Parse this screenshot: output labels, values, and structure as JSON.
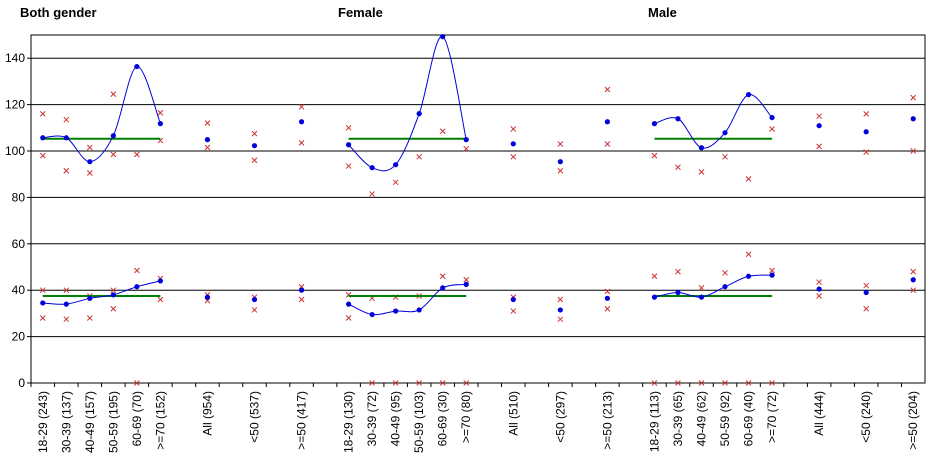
{
  "chart_data": {
    "type": "line",
    "panel_titles": [
      "Both gender",
      "Female",
      "Male"
    ],
    "categories": [
      "18-29 (243)",
      "30-39 (137)",
      "40-49 (157)",
      "50-59 (195)",
      "60-69 (70)",
      ">=70 (152)",
      null,
      "All (954)",
      null,
      "<50 (537)",
      null,
      ">=50 (417)",
      null,
      "18-29 (130)",
      "30-39 (72)",
      "40-49 (95)",
      "50-59 (103)",
      "60-69 (30)",
      ">=70 (80)",
      null,
      "All (510)",
      null,
      "<50 (297)",
      null,
      ">=50 (213)",
      null,
      "18-29 (113)",
      "30-39 (65)",
      "40-49 (62)",
      "50-59 (92)",
      "60-69 (40)",
      ">=70 (72)",
      null,
      "All (444)",
      null,
      "<50 (240)",
      null,
      ">=50 (204)"
    ],
    "ylim": [
      0,
      150
    ],
    "yticks": [
      0,
      20,
      40,
      60,
      80,
      100,
      120,
      140
    ],
    "grid": true,
    "series": [
      {
        "color": "#cc3333",
        "marker": "x",
        "line": false,
        "values": [
          116,
          113.5,
          101.5,
          124.5,
          null,
          116.5,
          null,
          112,
          null,
          107.5,
          null,
          119,
          null,
          110,
          null,
          null,
          null,
          null,
          null,
          null,
          109.5,
          null,
          103,
          null,
          126.5,
          null,
          null,
          null,
          null,
          null,
          null,
          null,
          null,
          115,
          null,
          116,
          null,
          123
        ]
      },
      {
        "color": "#cc3333",
        "marker": "x",
        "line": false,
        "values": [
          98,
          91.5,
          90.5,
          98.5,
          98.5,
          104.5,
          null,
          101.5,
          null,
          96,
          null,
          103.5,
          null,
          93.5,
          81.5,
          86.5,
          97.5,
          108.5,
          101,
          null,
          97.5,
          null,
          91.5,
          null,
          103,
          null,
          98,
          93,
          91,
          97.5,
          88,
          109.5,
          null,
          102,
          null,
          99.5,
          null,
          100
        ]
      },
      {
        "color": "#008000",
        "marker": null,
        "line": true,
        "smooth": false,
        "values": [
          105.3,
          105.3,
          105.3,
          105.3,
          105.3,
          105.3,
          null,
          null,
          null,
          null,
          null,
          null,
          null,
          105.3,
          105.3,
          105.3,
          105.3,
          105.3,
          105.3,
          null,
          null,
          null,
          null,
          null,
          null,
          null,
          105.3,
          105.3,
          105.3,
          105.3,
          105.3,
          105.3,
          null,
          null,
          null,
          null,
          null,
          null
        ]
      },
      {
        "color": "#0000dd",
        "marker": "dot",
        "line": true,
        "smooth": true,
        "values": [
          105.7,
          105.7,
          95.4,
          106.6,
          136.4,
          111.8,
          null,
          104.9,
          null,
          102.3,
          null,
          112.6,
          null,
          102.7,
          92.8,
          94.1,
          116.1,
          149.3,
          104.9,
          null,
          103.1,
          null,
          95.4,
          null,
          112.6,
          null,
          111.8,
          113.9,
          101.4,
          107.9,
          124.3,
          114.4,
          null,
          110.9,
          null,
          108.3,
          null,
          113.9
        ]
      },
      {
        "color": "#cc3333",
        "marker": "x",
        "line": false,
        "values": [
          40,
          40,
          37.5,
          40,
          48.5,
          45,
          null,
          38,
          null,
          37,
          null,
          41.5,
          null,
          38,
          36.5,
          37,
          37.5,
          46,
          44.5,
          null,
          37,
          null,
          36,
          null,
          39.5,
          null,
          46,
          48,
          41,
          47.5,
          55.5,
          48.5,
          null,
          43.5,
          null,
          42,
          null,
          48
        ]
      },
      {
        "color": "#cc3333",
        "marker": "x",
        "line": false,
        "values": [
          28,
          27.5,
          28,
          32,
          0,
          36,
          null,
          35.5,
          null,
          31.5,
          null,
          36,
          null,
          28,
          0,
          0,
          0,
          0,
          0,
          null,
          31,
          null,
          27.5,
          null,
          32,
          null,
          0,
          0,
          0,
          0,
          0,
          0,
          null,
          37.5,
          null,
          32,
          null,
          40
        ]
      },
      {
        "color": "#008000",
        "marker": null,
        "line": true,
        "smooth": false,
        "values": [
          37.5,
          37.5,
          37.5,
          37.5,
          37.5,
          37.5,
          null,
          null,
          null,
          null,
          null,
          null,
          null,
          37.5,
          37.5,
          37.5,
          37.5,
          37.5,
          37.5,
          null,
          null,
          null,
          null,
          null,
          null,
          null,
          37.5,
          37.5,
          37.5,
          37.5,
          37.5,
          37.5,
          null,
          null,
          null,
          null,
          null,
          null
        ]
      },
      {
        "color": "#0000dd",
        "marker": "dot",
        "line": true,
        "smooth": true,
        "values": [
          34.5,
          34,
          36.5,
          38,
          41.5,
          44,
          null,
          37,
          null,
          36,
          null,
          40,
          null,
          34,
          29.5,
          31,
          31.5,
          41,
          42.5,
          null,
          36,
          null,
          31.5,
          null,
          36.5,
          null,
          37,
          39,
          37,
          41.5,
          46,
          46.5,
          null,
          40.5,
          null,
          39,
          null,
          44.5
        ]
      }
    ]
  }
}
